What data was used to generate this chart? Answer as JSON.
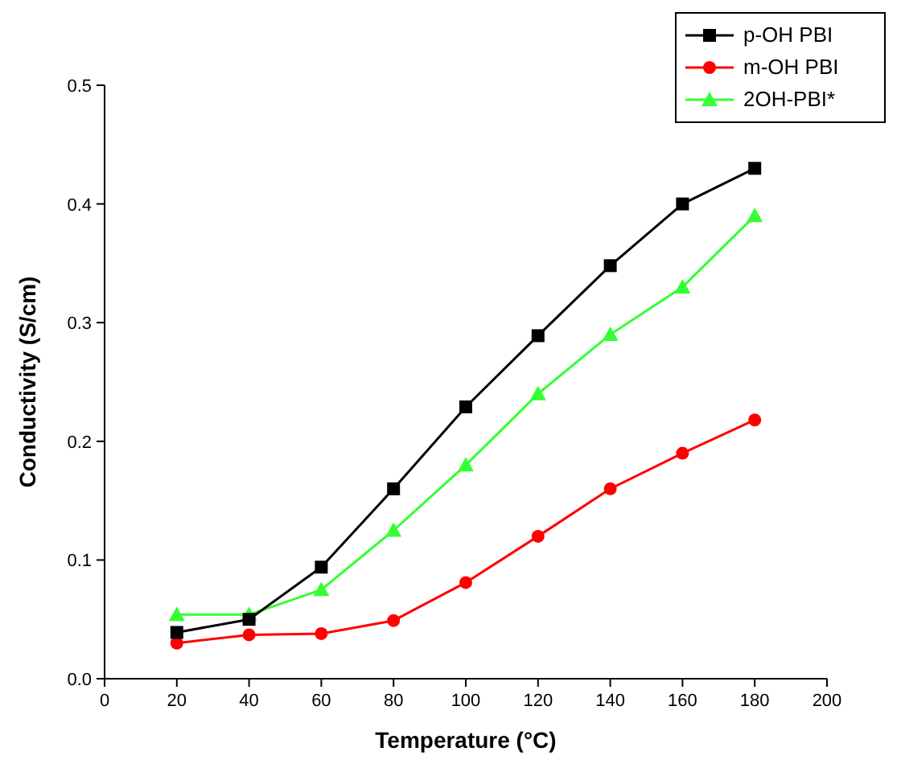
{
  "chart_data": {
    "type": "line",
    "xlabel": "Temperature (°C)",
    "ylabel": "Conductivity (S/cm)",
    "x": [
      20,
      40,
      60,
      80,
      100,
      120,
      140,
      160,
      180
    ],
    "series": [
      {
        "name": "p-OH PBI",
        "color": "#000000",
        "marker": "square",
        "values": [
          0.039,
          0.05,
          0.094,
          0.16,
          0.229,
          0.289,
          0.348,
          0.4,
          0.43
        ]
      },
      {
        "name": "m-OH PBI",
        "color": "#ff0000",
        "marker": "circle",
        "values": [
          0.03,
          0.037,
          0.038,
          0.049,
          0.081,
          0.12,
          0.16,
          0.19,
          0.218
        ]
      },
      {
        "name": "2OH-PBI*",
        "color": "#33ff33",
        "marker": "triangle",
        "values": [
          0.054,
          0.054,
          0.075,
          0.125,
          0.18,
          0.24,
          0.29,
          0.33,
          0.39
        ]
      }
    ],
    "xlim": [
      0,
      200
    ],
    "xticks": [
      0,
      20,
      40,
      60,
      80,
      100,
      120,
      140,
      160,
      180,
      200
    ],
    "ylim": [
      0,
      0.5
    ],
    "yticks": [
      {
        "value": 0,
        "label": "0.0"
      },
      0.1,
      0.2,
      0.3,
      0.4,
      0.5
    ],
    "grid": false,
    "legend": "top right"
  }
}
